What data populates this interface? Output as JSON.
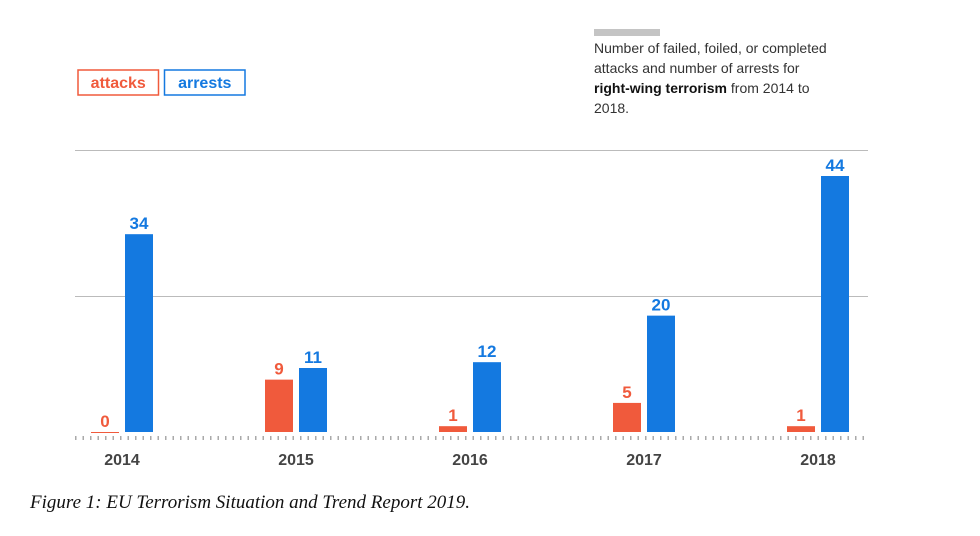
{
  "chart_data": {
    "type": "bar",
    "note": [
      "Number of failed, foiled, or completed attacks and number of arrests for ",
      "right-wing terrorism",
      " from 2014 to 2018."
    ],
    "categories": [
      "2014",
      "2015",
      "2016",
      "2017",
      "2018"
    ],
    "series": [
      {
        "name": "attacks",
        "color": "#f05a3c",
        "values": [
          0,
          9,
          1,
          5,
          1
        ]
      },
      {
        "name": "arrests",
        "color": "#1479e0",
        "values": [
          34,
          11,
          12,
          20,
          44
        ]
      }
    ],
    "ylim": [
      0,
      44
    ],
    "caption": "Figure 1: EU Terrorism Situation and Trend Report 2019."
  }
}
